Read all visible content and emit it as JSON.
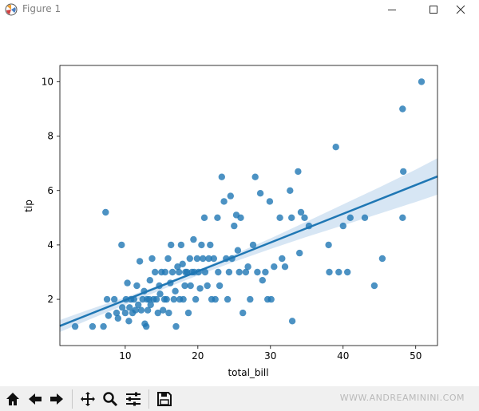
{
  "window": {
    "title": "Figure 1",
    "minimize_icon": "minimize-icon",
    "maximize_icon": "maximize-icon",
    "close_icon": "close-icon"
  },
  "toolbar": {
    "buttons": [
      "home-icon",
      "back-arrow-icon",
      "forward-arrow-icon",
      "pan-icon",
      "zoom-icon",
      "configure-subplots-icon",
      "save-icon"
    ],
    "watermark": "WWW.ANDREAMININI.COM"
  },
  "colors": {
    "points": "#1f77b4",
    "regression_line": "#1f77b4",
    "confidence_band": "#c6dbef",
    "toolbar_bg": "#f0f0f0"
  },
  "chart_data": {
    "type": "scatter",
    "title": "",
    "xlabel": "total_bill",
    "ylabel": "tip",
    "xlim": [
      1,
      53
    ],
    "ylim": [
      0.3,
      10.6
    ],
    "xticks": [
      10,
      20,
      30,
      40,
      50
    ],
    "yticks": [
      2,
      4,
      6,
      8,
      10
    ],
    "grid": false,
    "legend": "none",
    "points": [
      [
        3.1,
        1.0
      ],
      [
        5.5,
        1.0
      ],
      [
        7.0,
        1.0
      ],
      [
        7.3,
        5.2
      ],
      [
        7.5,
        2.0
      ],
      [
        7.7,
        1.4
      ],
      [
        8.5,
        2.0
      ],
      [
        8.8,
        1.5
      ],
      [
        9.0,
        1.3
      ],
      [
        9.5,
        4.0
      ],
      [
        9.6,
        1.7
      ],
      [
        10.0,
        1.5
      ],
      [
        10.1,
        2.0
      ],
      [
        10.3,
        2.6
      ],
      [
        10.5,
        1.2
      ],
      [
        10.6,
        1.7
      ],
      [
        10.8,
        2.0
      ],
      [
        11.0,
        1.5
      ],
      [
        11.2,
        2.0
      ],
      [
        11.4,
        1.6
      ],
      [
        11.6,
        2.5
      ],
      [
        11.8,
        1.8
      ],
      [
        12.0,
        3.4
      ],
      [
        12.2,
        1.6
      ],
      [
        12.4,
        2.0
      ],
      [
        12.6,
        2.3
      ],
      [
        12.7,
        1.1
      ],
      [
        12.9,
        1.0
      ],
      [
        13.0,
        2.0
      ],
      [
        13.1,
        1.6
      ],
      [
        13.3,
        2.0
      ],
      [
        13.4,
        2.7
      ],
      [
        13.5,
        1.8
      ],
      [
        13.7,
        3.5
      ],
      [
        13.9,
        2.0
      ],
      [
        14.1,
        3.0
      ],
      [
        14.3,
        2.0
      ],
      [
        14.5,
        1.5
      ],
      [
        14.7,
        2.5
      ],
      [
        14.8,
        2.2
      ],
      [
        15.0,
        3.0
      ],
      [
        15.2,
        1.6
      ],
      [
        15.4,
        2.0
      ],
      [
        15.5,
        3.0
      ],
      [
        15.7,
        2.0
      ],
      [
        15.9,
        3.5
      ],
      [
        16.0,
        1.5
      ],
      [
        16.2,
        2.6
      ],
      [
        16.3,
        4.0
      ],
      [
        16.5,
        3.0
      ],
      [
        16.7,
        2.0
      ],
      [
        16.9,
        2.3
      ],
      [
        17.0,
        1.0
      ],
      [
        17.2,
        3.2
      ],
      [
        17.4,
        3.0
      ],
      [
        17.5,
        2.0
      ],
      [
        17.7,
        4.0
      ],
      [
        17.9,
        3.3
      ],
      [
        18.0,
        2.0
      ],
      [
        18.2,
        2.5
      ],
      [
        18.3,
        3.0
      ],
      [
        18.5,
        3.0
      ],
      [
        18.7,
        1.5
      ],
      [
        18.9,
        3.5
      ],
      [
        19.0,
        2.5
      ],
      [
        19.2,
        3.0
      ],
      [
        19.4,
        4.2
      ],
      [
        19.5,
        3.0
      ],
      [
        19.7,
        2.0
      ],
      [
        19.9,
        3.5
      ],
      [
        20.1,
        3.0
      ],
      [
        20.3,
        2.4
      ],
      [
        20.5,
        4.0
      ],
      [
        20.7,
        3.5
      ],
      [
        20.9,
        5.0
      ],
      [
        21.0,
        3.0
      ],
      [
        21.3,
        2.5
      ],
      [
        21.5,
        3.5
      ],
      [
        21.7,
        4.0
      ],
      [
        21.9,
        2.0
      ],
      [
        22.2,
        3.5
      ],
      [
        22.4,
        2.0
      ],
      [
        22.7,
        5.0
      ],
      [
        22.8,
        3.0
      ],
      [
        23.0,
        2.5
      ],
      [
        23.3,
        6.5
      ],
      [
        23.6,
        5.6
      ],
      [
        23.9,
        3.5
      ],
      [
        24.1,
        2.0
      ],
      [
        24.3,
        3.0
      ],
      [
        24.5,
        5.8
      ],
      [
        24.7,
        3.5
      ],
      [
        25.0,
        4.7
      ],
      [
        25.3,
        5.1
      ],
      [
        25.5,
        3.8
      ],
      [
        25.7,
        3.0
      ],
      [
        25.9,
        5.0
      ],
      [
        26.2,
        1.5
      ],
      [
        26.6,
        3.0
      ],
      [
        26.9,
        3.2
      ],
      [
        27.2,
        2.0
      ],
      [
        27.6,
        4.0
      ],
      [
        27.9,
        6.5
      ],
      [
        28.2,
        3.0
      ],
      [
        28.6,
        5.9
      ],
      [
        28.9,
        2.7
      ],
      [
        29.3,
        3.0
      ],
      [
        29.6,
        2.0
      ],
      [
        29.9,
        5.6
      ],
      [
        30.1,
        2.0
      ],
      [
        30.5,
        3.2
      ],
      [
        31.3,
        5.0
      ],
      [
        31.6,
        3.5
      ],
      [
        32.0,
        3.2
      ],
      [
        32.7,
        6.0
      ],
      [
        32.9,
        5.0
      ],
      [
        33.0,
        1.2
      ],
      [
        33.8,
        6.7
      ],
      [
        34.0,
        3.7
      ],
      [
        34.2,
        5.2
      ],
      [
        34.7,
        5.0
      ],
      [
        35.3,
        4.7
      ],
      [
        38.0,
        4.0
      ],
      [
        38.1,
        3.0
      ],
      [
        39.0,
        7.6
      ],
      [
        39.4,
        3.0
      ],
      [
        40.0,
        4.7
      ],
      [
        40.6,
        3.0
      ],
      [
        41.0,
        5.0
      ],
      [
        43.0,
        5.0
      ],
      [
        44.3,
        2.5
      ],
      [
        45.4,
        3.5
      ],
      [
        48.2,
        5.0
      ],
      [
        48.2,
        9.0
      ],
      [
        48.3,
        6.7
      ],
      [
        50.8,
        10.0
      ]
    ],
    "regression": {
      "x": [
        1,
        53
      ],
      "y": [
        1.02,
        6.52
      ]
    },
    "confidence_band": {
      "x": [
        1,
        5,
        10,
        15,
        20,
        25,
        30,
        35,
        40,
        45,
        50,
        53
      ],
      "lower": [
        0.8,
        1.25,
        1.8,
        2.35,
        2.88,
        3.38,
        3.85,
        4.3,
        4.72,
        5.15,
        5.58,
        5.85
      ],
      "upper": [
        1.24,
        1.62,
        2.07,
        2.55,
        3.08,
        3.65,
        4.24,
        4.86,
        5.49,
        6.12,
        6.77,
        7.19
      ]
    }
  }
}
